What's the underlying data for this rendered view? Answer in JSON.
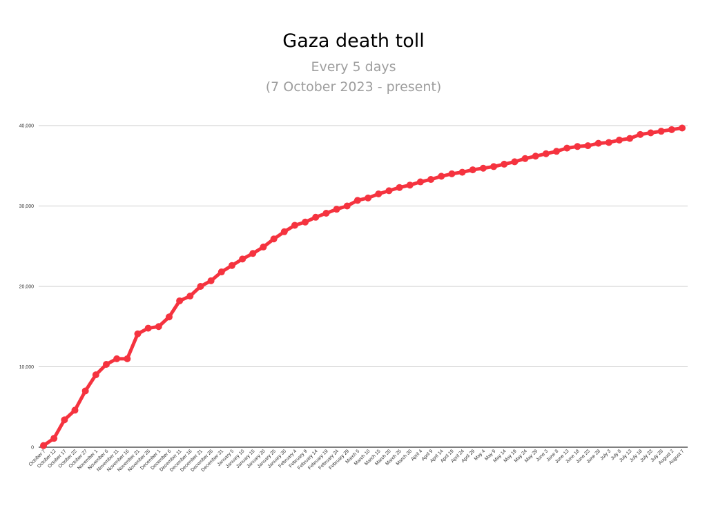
{
  "chart_data": {
    "type": "line",
    "title": "Gaza death toll",
    "subtitle": "Every 5 days",
    "subtitle2": "(7 October 2023 - present)",
    "xlabel": "",
    "ylabel": "",
    "ylim": [
      0,
      40000
    ],
    "yticks": [
      0,
      10000,
      20000,
      30000,
      40000
    ],
    "ytick_labels": [
      "0",
      "10,000",
      "20,000",
      "30,000",
      "40,000"
    ],
    "grid": true,
    "legend": "none",
    "line_color": "#f5333f",
    "categories": [
      "October 7",
      "October 12",
      "October 17",
      "October 22",
      "October 27",
      "November 1",
      "November 6",
      "November 11",
      "November 16",
      "November 21",
      "November 26",
      "December 1",
      "December 6",
      "December 11",
      "December 16",
      "December 21",
      "December 26",
      "December 31",
      "January 5",
      "January 10",
      "January 15",
      "January 20",
      "January 25",
      "January 30",
      "February 4",
      "February 9",
      "February 14",
      "February 19",
      "February 24",
      "February 29",
      "March 5",
      "March 10",
      "March 15",
      "March 20",
      "March 25",
      "March 30",
      "April 4",
      "April 9",
      "April 14",
      "April 19",
      "April 24",
      "April 29",
      "May 4",
      "May 9",
      "May 14",
      "May 19",
      "May 24",
      "May 29",
      "June 3",
      "June 8",
      "June 13",
      "June 18",
      "June 23",
      "June 28",
      "July 3",
      "July 8",
      "July 13",
      "July 18",
      "July 23",
      "July 28",
      "August 2",
      "August 7"
    ],
    "values": [
      200,
      1100,
      3400,
      4600,
      7000,
      9000,
      10300,
      11000,
      11000,
      14100,
      14800,
      15000,
      16200,
      18200,
      18800,
      20000,
      20700,
      21800,
      22600,
      23400,
      24100,
      24900,
      25900,
      26800,
      27600,
      28000,
      28600,
      29100,
      29600,
      30000,
      30700,
      31000,
      31500,
      31900,
      32300,
      32600,
      33000,
      33300,
      33700,
      34000,
      34200,
      34500,
      34700,
      34900,
      35200,
      35500,
      35900,
      36200,
      36500,
      36800,
      37200,
      37400,
      37500,
      37800,
      37900,
      38200,
      38400,
      38900,
      39100,
      39300,
      39500,
      39700
    ]
  }
}
